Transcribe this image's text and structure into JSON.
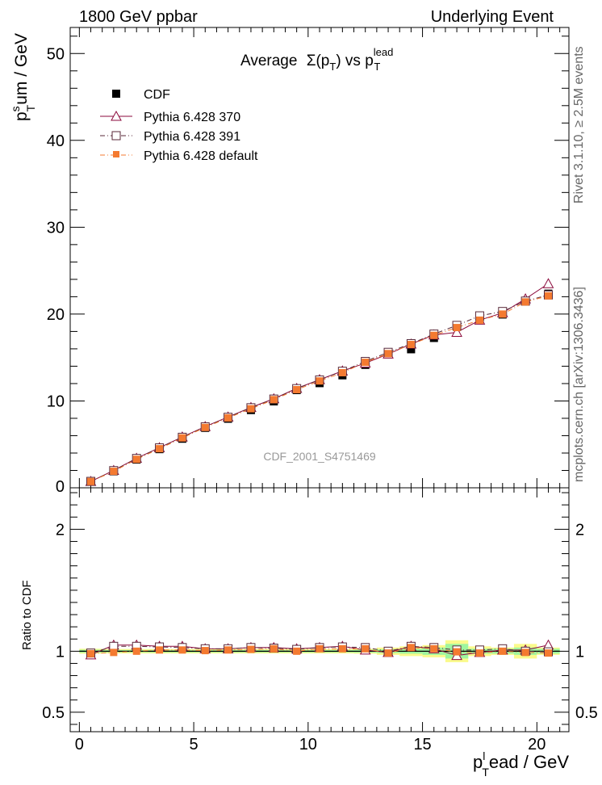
{
  "header": {
    "left": "1800 GeV ppbar",
    "right": "Underlying Event"
  },
  "side_labels": {
    "top": "Rivet 3.1.10, ≥ 2.5M events",
    "bottom": "mcplots.cern.ch [arXiv:1306.3436]"
  },
  "watermark": "CDF_2001_S4751469",
  "colors": {
    "cdf": "#000000",
    "py370": "#8b0a3c",
    "py391": "#5a2a3a",
    "pydef": "#f47a30",
    "band_green": "#9ef59e",
    "band_yellow": "#fafa8c"
  },
  "chart_data": [
    {
      "type": "line",
      "title_parts": {
        "main": "Average",
        "sigma": "Σ(p",
        "sub": "T",
        "close": ") vs p",
        "sup2": "lead",
        "sub2": "T"
      },
      "ylabel_parts": {
        "p": "p",
        "sup": "s",
        "sub": "T",
        "rest": "um / GeV"
      },
      "xlim": [
        -0.4,
        21.4
      ],
      "ylim": [
        0,
        53
      ],
      "yticks": [
        0,
        10,
        20,
        30,
        40,
        50
      ],
      "ytick_labels": [
        "0",
        "10",
        "20",
        "30",
        "40",
        "50"
      ],
      "x": [
        0.5,
        1.5,
        2.5,
        3.5,
        4.5,
        5.5,
        6.5,
        7.5,
        8.5,
        9.5,
        10.5,
        11.5,
        12.5,
        13.5,
        14.5,
        15.5,
        16.5,
        17.5,
        18.5,
        19.5,
        20.5
      ],
      "series": [
        {
          "name": "CDF",
          "values": [
            0.75,
            1.9,
            3.25,
            4.45,
            5.65,
            6.9,
            7.95,
            8.95,
            9.95,
            11.25,
            12.05,
            12.95,
            14.15,
            15.55,
            15.95,
            17.25,
            18.55,
            19.55,
            19.95,
            21.45,
            22.35
          ]
        },
        {
          "name": "Pythia 6.428 370",
          "values": [
            0.73,
            2.0,
            3.4,
            4.62,
            5.85,
            7.05,
            8.15,
            9.25,
            10.25,
            11.45,
            12.45,
            13.45,
            14.35,
            15.4,
            16.55,
            17.6,
            17.9,
            19.3,
            20.15,
            21.75,
            23.5
          ]
        },
        {
          "name": "Pythia 6.428 391",
          "values": [
            0.74,
            1.98,
            3.38,
            4.6,
            5.82,
            7.02,
            8.12,
            9.22,
            10.22,
            11.42,
            12.42,
            13.42,
            14.55,
            15.6,
            16.6,
            17.7,
            18.7,
            19.8,
            20.3,
            21.5,
            22.2
          ]
        },
        {
          "name": "Pythia 6.428 default",
          "values": [
            0.72,
            1.9,
            3.28,
            4.5,
            5.75,
            6.95,
            8.05,
            9.1,
            10.15,
            11.3,
            12.3,
            13.25,
            14.45,
            15.45,
            16.5,
            17.55,
            18.45,
            19.3,
            20.0,
            21.4,
            22.1
          ]
        }
      ]
    },
    {
      "type": "line",
      "ylabel": "Ratio to CDF",
      "xlabel_parts": {
        "p": "p",
        "sup": "l",
        "sub": "T",
        "rest": "ead / GeV"
      },
      "xlim": [
        -0.4,
        21.4
      ],
      "ylim": [
        0.34,
        2.34
      ],
      "yticks": [
        0.5,
        1,
        2
      ],
      "ytick_labels": [
        "0.5",
        "1",
        "2"
      ],
      "xticks": [
        0,
        5,
        10,
        15,
        20
      ],
      "xtick_labels": [
        "0",
        "5",
        "10",
        "15",
        "20"
      ],
      "x": [
        0.5,
        1.5,
        2.5,
        3.5,
        4.5,
        5.5,
        6.5,
        7.5,
        8.5,
        9.5,
        10.5,
        11.5,
        12.5,
        13.5,
        14.5,
        15.5,
        16.5,
        17.5,
        18.5,
        19.5,
        20.5
      ],
      "band_green_halfwidth": [
        0.012,
        0.01,
        0.01,
        0.01,
        0.01,
        0.01,
        0.01,
        0.01,
        0.01,
        0.01,
        0.01,
        0.01,
        0.012,
        0.015,
        0.02,
        0.03,
        0.06,
        0.02,
        0.02,
        0.03,
        0.02
      ],
      "band_yellow_halfwidth": [
        0.02,
        0.018,
        0.018,
        0.018,
        0.018,
        0.018,
        0.018,
        0.018,
        0.018,
        0.018,
        0.018,
        0.018,
        0.02,
        0.03,
        0.04,
        0.05,
        0.09,
        0.04,
        0.03,
        0.06,
        0.03
      ],
      "series": [
        {
          "name": "Pythia 6.428 370",
          "values": [
            0.97,
            1.05,
            1.05,
            1.04,
            1.04,
            1.02,
            1.02,
            1.03,
            1.03,
            1.02,
            1.03,
            1.04,
            1.01,
            0.99,
            1.04,
            1.02,
            0.965,
            0.99,
            1.01,
            1.01,
            1.05
          ]
        },
        {
          "name": "Pythia 6.428 391",
          "values": [
            0.985,
            1.04,
            1.04,
            1.035,
            1.03,
            1.02,
            1.02,
            1.03,
            1.025,
            1.015,
            1.03,
            1.035,
            1.03,
            1.0,
            1.04,
            1.03,
            1.01,
            1.01,
            1.02,
            1.0,
            0.995
          ]
        },
        {
          "name": "Pythia 6.428 default",
          "values": [
            0.98,
            0.99,
            1.0,
            1.01,
            1.01,
            1.005,
            1.01,
            1.015,
            1.02,
            1.0,
            1.02,
            1.02,
            1.02,
            0.985,
            1.03,
            1.02,
            0.995,
            0.985,
            1.0,
            0.99,
            0.985
          ]
        }
      ]
    }
  ]
}
